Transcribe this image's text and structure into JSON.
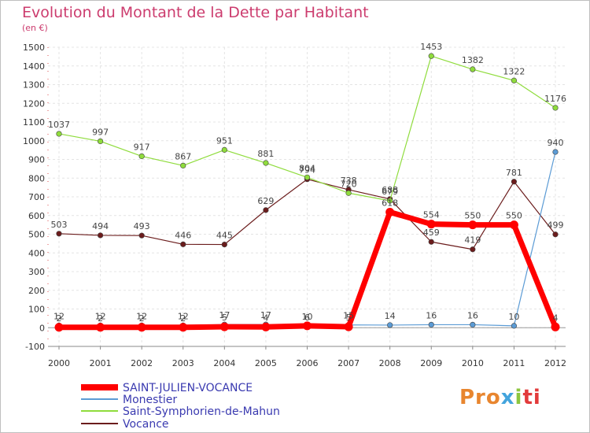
{
  "header": {
    "title": "Evolution du Montant de la Dette par Habitant",
    "subtitle": "(en €)"
  },
  "logo": {
    "text": "Proxiti",
    "colors": [
      "#e8862f",
      "#43a4dd",
      "#8cc63f",
      "#e23b3b"
    ]
  },
  "chart_data": {
    "type": "line",
    "title": "Evolution du Montant de la Dette par Habitant",
    "subtitle": "(en €)",
    "xlabel": "",
    "ylabel": "(en €)",
    "ylim": [
      -100,
      1500
    ],
    "yticks": [
      -100,
      0,
      100,
      200,
      300,
      400,
      500,
      600,
      700,
      800,
      900,
      1000,
      1100,
      1200,
      1300,
      1400,
      1500
    ],
    "grid": true,
    "legend_position": "bottom-left",
    "x": [
      "2000",
      "2001",
      "2002",
      "2003",
      "2004",
      "2005",
      "2006",
      "2007",
      "2008",
      "2009",
      "2010",
      "2011",
      "2012"
    ],
    "series": [
      {
        "name": "SAINT-JULIEN-VOCANCE",
        "color": "#ff0000",
        "values": [
          2,
          2,
          2,
          2,
          5,
          4,
          10,
          5,
          618,
          554,
          550,
          550,
          4
        ],
        "labels": [
          "2",
          "2",
          "2",
          "2",
          "5",
          "4",
          "10",
          "5",
          "618",
          "554",
          "550",
          "550",
          "4"
        ]
      },
      {
        "name": "Monestier",
        "color": "#5b9bd5",
        "values": [
          12,
          12,
          12,
          12,
          17,
          17,
          6,
          15,
          14,
          16,
          16,
          10,
          940
        ],
        "labels": [
          "12",
          "12",
          "12",
          "12",
          "17",
          "17",
          "6",
          "15",
          "14",
          "16",
          "16",
          "10",
          "940"
        ]
      },
      {
        "name": "Saint-Symphorien-de-Mahun",
        "color": "#8fdc3c",
        "values": [
          1037,
          997,
          917,
          867,
          951,
          881,
          804,
          720,
          679,
          1453,
          1382,
          1322,
          1176
        ],
        "labels": [
          "1037",
          "997",
          "917",
          "867",
          "951",
          "881",
          "804",
          "720",
          "679",
          "1453",
          "1382",
          "1322",
          "1176"
        ]
      },
      {
        "name": "Vocance",
        "color": "#6b1c1c",
        "values": [
          503,
          494,
          493,
          446,
          445,
          629,
          794,
          738,
          688,
          459,
          419,
          781,
          499
        ],
        "labels": [
          "503",
          "494",
          "493",
          "446",
          "445",
          "629",
          "794",
          "738",
          "688",
          "459",
          "419",
          "781",
          "499"
        ]
      }
    ]
  }
}
